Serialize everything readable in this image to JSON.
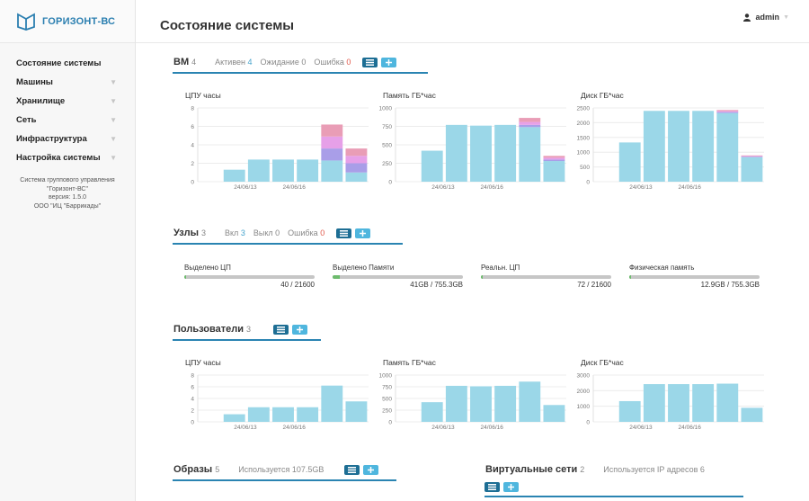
{
  "app": {
    "logo_text": "ГОРИЗОНТ-ВС"
  },
  "sidebar": {
    "items": [
      {
        "label": "Состояние системы",
        "has_chevron": false
      },
      {
        "label": "Машины",
        "has_chevron": true
      },
      {
        "label": "Хранилище",
        "has_chevron": true
      },
      {
        "label": "Сеть",
        "has_chevron": true
      },
      {
        "label": "Инфраструктура",
        "has_chevron": true
      },
      {
        "label": "Настройка системы",
        "has_chevron": true
      }
    ],
    "info": [
      "Система группового управления",
      "\"Горизонт-ВС\"",
      "версия: 1.5.0",
      "ООО \"ИЦ \"Баррикады\""
    ]
  },
  "header": {
    "title": "Состояние системы",
    "user": "admin"
  },
  "vm": {
    "title": "ВМ",
    "count": "4",
    "stats": [
      {
        "label": "Активен",
        "value": "4",
        "type": "ok"
      },
      {
        "label": "Ожидание",
        "value": "0",
        "type": "neutral"
      },
      {
        "label": "Ошибка",
        "value": "0",
        "type": "err"
      }
    ]
  },
  "hosts": {
    "title": "Узлы",
    "count": "3",
    "stats": [
      {
        "label": "Вкл",
        "value": "3",
        "type": "ok"
      },
      {
        "label": "Выкл",
        "value": "0",
        "type": "neutral"
      },
      {
        "label": "Ошибка",
        "value": "0",
        "type": "err"
      }
    ],
    "resources": [
      {
        "label": "Выделено ЦП",
        "value": "40 / 21600",
        "fraction": 0.002
      },
      {
        "label": "Выделено Памяти",
        "value": "41GB / 755.3GB",
        "fraction": 0.054
      },
      {
        "label": "Реальн. ЦП",
        "value": "72 / 21600",
        "fraction": 0.003
      },
      {
        "label": "Физическая память",
        "value": "12.9GB / 755.3GB",
        "fraction": 0.017
      }
    ]
  },
  "users": {
    "title": "Пользователи",
    "count": "3"
  },
  "images": {
    "title": "Образы",
    "count": "5",
    "usage": "Используется 107.5GB"
  },
  "vnets": {
    "title": "Виртуальные сети",
    "count": "2",
    "usage": "Используется IP адресов 6"
  },
  "colors": {
    "accent": "#2a84b2",
    "bar": "#9bd7e8",
    "error": "#e0594b",
    "ok": "#46a3cc"
  },
  "chart_data": [
    {
      "type": "bar",
      "title": "ЦПУ часы",
      "ylim": [
        0,
        8
      ],
      "yticks": [
        "0",
        "2",
        "4",
        "6",
        "8"
      ],
      "xlabels": [
        "24/06/13",
        "24/06/16"
      ],
      "series": [
        {
          "color": "#9bd7e8",
          "values": [
            0,
            1.3,
            2.4,
            2.4,
            2.4,
            2.3,
            1.0
          ]
        },
        {
          "color": "#a99ee8",
          "values": [
            0,
            0,
            0,
            0,
            0,
            1.3,
            1.0
          ]
        },
        {
          "color": "#e6a0e8",
          "values": [
            0,
            0,
            0,
            0,
            0,
            1.3,
            0.8
          ]
        },
        {
          "color": "#e99db6",
          "values": [
            0,
            0,
            0,
            0,
            0,
            1.3,
            0.8
          ]
        }
      ]
    },
    {
      "type": "bar",
      "title": "Память ГБ*час",
      "ylim": [
        0,
        1000
      ],
      "yticks": [
        "0",
        "250",
        "500",
        "750",
        "1000"
      ],
      "xlabels": [
        "24/06/13",
        "24/06/16"
      ],
      "series": [
        {
          "color": "#9bd7e8",
          "values": [
            0,
            420,
            770,
            760,
            770,
            740,
            280
          ]
        },
        {
          "color": "#a99ee8",
          "values": [
            0,
            0,
            0,
            0,
            0,
            30,
            20
          ]
        },
        {
          "color": "#e6a0e8",
          "values": [
            0,
            0,
            0,
            0,
            0,
            40,
            25
          ]
        },
        {
          "color": "#e99db6",
          "values": [
            0,
            0,
            0,
            0,
            0,
            55,
            25
          ]
        }
      ]
    },
    {
      "type": "bar",
      "title": "Диск ГБ*час",
      "ylim": [
        0,
        2500
      ],
      "yticks": [
        "0",
        "500",
        "1000",
        "1500",
        "2000",
        "2500"
      ],
      "xlabels": [
        "24/06/13",
        "24/06/16"
      ],
      "series": [
        {
          "color": "#9bd7e8",
          "values": [
            0,
            1330,
            2400,
            2400,
            2400,
            2330,
            830
          ]
        },
        {
          "color": "#a99ee8",
          "values": [
            0,
            0,
            0,
            0,
            0,
            30,
            20
          ]
        },
        {
          "color": "#e6a0e8",
          "values": [
            0,
            0,
            0,
            0,
            0,
            30,
            20
          ]
        },
        {
          "color": "#e99db6",
          "values": [
            0,
            0,
            0,
            0,
            0,
            40,
            20
          ]
        }
      ]
    },
    {
      "type": "bar",
      "title": "ЦПУ часы",
      "ylim": [
        0,
        8
      ],
      "yticks": [
        "0",
        "2",
        "4",
        "6",
        "8"
      ],
      "xlabels": [
        "24/06/13",
        "24/06/16"
      ],
      "series": [
        {
          "color": "#9bd7e8",
          "values": [
            0,
            1.3,
            2.5,
            2.5,
            2.5,
            6.2,
            3.5
          ]
        }
      ]
    },
    {
      "type": "bar",
      "title": "Память ГБ*час",
      "ylim": [
        0,
        1000
      ],
      "yticks": [
        "0",
        "250",
        "500",
        "750",
        "1000"
      ],
      "xlabels": [
        "24/06/13",
        "24/06/16"
      ],
      "series": [
        {
          "color": "#9bd7e8",
          "values": [
            0,
            420,
            770,
            760,
            770,
            860,
            360
          ]
        }
      ]
    },
    {
      "type": "bar",
      "title": "Диск ГБ*час",
      "ylim": [
        0,
        3000
      ],
      "yticks": [
        "0",
        "1000",
        "2000",
        "3000"
      ],
      "xlabels": [
        "24/06/13",
        "24/06/16"
      ],
      "series": [
        {
          "color": "#9bd7e8",
          "values": [
            0,
            1330,
            2420,
            2420,
            2420,
            2450,
            900
          ]
        }
      ]
    }
  ]
}
